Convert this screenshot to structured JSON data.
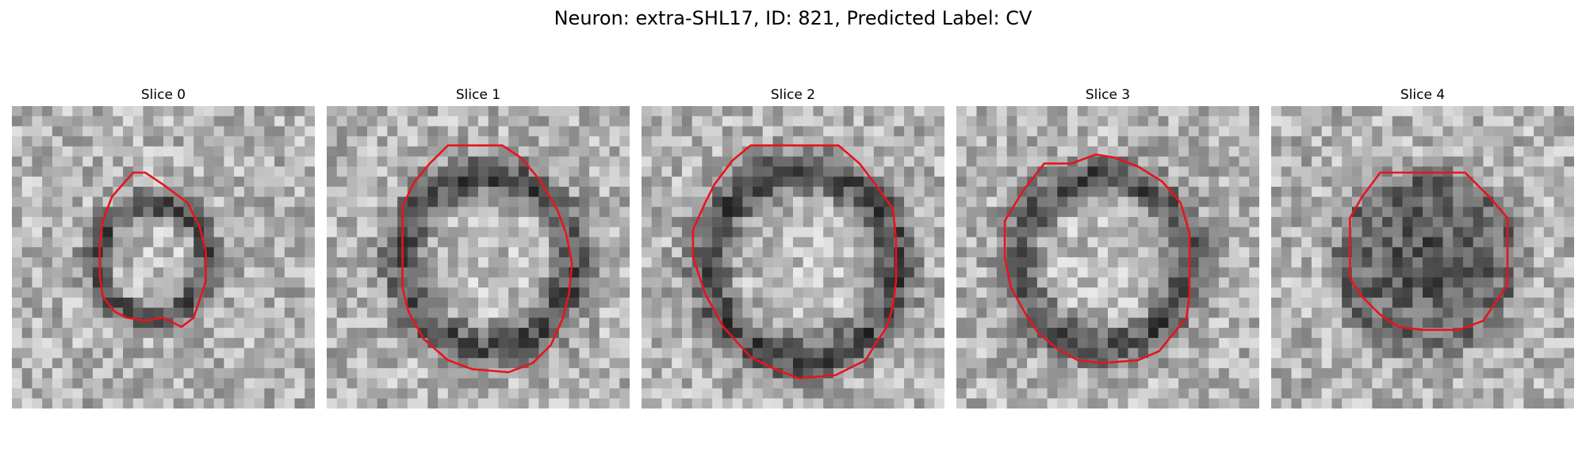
{
  "figure": {
    "title": "Neuron: extra-SHL17, ID: 821, Predicted Label: CV"
  },
  "panels": [
    {
      "title": "Slice 0",
      "ring": "dark-ring",
      "outline": [
        [
          0.4,
          0.22
        ],
        [
          0.44,
          0.22
        ],
        [
          0.5,
          0.26
        ],
        [
          0.58,
          0.32
        ],
        [
          0.62,
          0.4
        ],
        [
          0.64,
          0.48
        ],
        [
          0.64,
          0.58
        ],
        [
          0.62,
          0.64
        ],
        [
          0.6,
          0.7
        ],
        [
          0.56,
          0.73
        ],
        [
          0.5,
          0.7
        ],
        [
          0.44,
          0.71
        ],
        [
          0.38,
          0.7
        ],
        [
          0.34,
          0.68
        ],
        [
          0.3,
          0.63
        ],
        [
          0.29,
          0.56
        ],
        [
          0.29,
          0.46
        ],
        [
          0.3,
          0.38
        ],
        [
          0.33,
          0.3
        ]
      ]
    },
    {
      "title": "Slice 1",
      "ring": "dark-ring",
      "outline": [
        [
          0.4,
          0.13
        ],
        [
          0.58,
          0.13
        ],
        [
          0.64,
          0.17
        ],
        [
          0.7,
          0.24
        ],
        [
          0.76,
          0.34
        ],
        [
          0.79,
          0.42
        ],
        [
          0.81,
          0.52
        ],
        [
          0.8,
          0.62
        ],
        [
          0.78,
          0.7
        ],
        [
          0.74,
          0.79
        ],
        [
          0.68,
          0.85
        ],
        [
          0.6,
          0.88
        ],
        [
          0.48,
          0.87
        ],
        [
          0.4,
          0.84
        ],
        [
          0.32,
          0.77
        ],
        [
          0.27,
          0.68
        ],
        [
          0.25,
          0.6
        ],
        [
          0.25,
          0.5
        ],
        [
          0.25,
          0.33
        ],
        [
          0.29,
          0.25
        ],
        [
          0.34,
          0.19
        ]
      ]
    },
    {
      "title": "Slice 2",
      "ring": "dark-ring",
      "outline": [
        [
          0.36,
          0.13
        ],
        [
          0.65,
          0.13
        ],
        [
          0.72,
          0.19
        ],
        [
          0.78,
          0.27
        ],
        [
          0.83,
          0.34
        ],
        [
          0.84,
          0.44
        ],
        [
          0.84,
          0.58
        ],
        [
          0.83,
          0.66
        ],
        [
          0.81,
          0.73
        ],
        [
          0.77,
          0.79
        ],
        [
          0.74,
          0.84
        ],
        [
          0.64,
          0.89
        ],
        [
          0.52,
          0.9
        ],
        [
          0.44,
          0.87
        ],
        [
          0.36,
          0.83
        ],
        [
          0.27,
          0.73
        ],
        [
          0.21,
          0.62
        ],
        [
          0.17,
          0.5
        ],
        [
          0.17,
          0.41
        ],
        [
          0.21,
          0.32
        ],
        [
          0.24,
          0.26
        ],
        [
          0.3,
          0.18
        ]
      ]
    },
    {
      "title": "Slice 3",
      "ring": "dark-ring",
      "outline": [
        [
          0.22,
          0.28
        ],
        [
          0.29,
          0.19
        ],
        [
          0.38,
          0.19
        ],
        [
          0.46,
          0.16
        ],
        [
          0.52,
          0.17
        ],
        [
          0.6,
          0.2
        ],
        [
          0.68,
          0.25
        ],
        [
          0.74,
          0.32
        ],
        [
          0.77,
          0.42
        ],
        [
          0.77,
          0.52
        ],
        [
          0.77,
          0.62
        ],
        [
          0.76,
          0.7
        ],
        [
          0.71,
          0.76
        ],
        [
          0.67,
          0.81
        ],
        [
          0.6,
          0.84
        ],
        [
          0.48,
          0.85
        ],
        [
          0.4,
          0.84
        ],
        [
          0.33,
          0.8
        ],
        [
          0.27,
          0.75
        ],
        [
          0.23,
          0.69
        ],
        [
          0.18,
          0.6
        ],
        [
          0.16,
          0.5
        ],
        [
          0.16,
          0.38
        ]
      ]
    },
    {
      "title": "Slice 4",
      "ring": "dark-core",
      "outline": [
        [
          0.36,
          0.22
        ],
        [
          0.64,
          0.22
        ],
        [
          0.72,
          0.3
        ],
        [
          0.78,
          0.37
        ],
        [
          0.78,
          0.5
        ],
        [
          0.78,
          0.59
        ],
        [
          0.74,
          0.65
        ],
        [
          0.7,
          0.71
        ],
        [
          0.62,
          0.74
        ],
        [
          0.5,
          0.74
        ],
        [
          0.42,
          0.73
        ],
        [
          0.36,
          0.69
        ],
        [
          0.3,
          0.63
        ],
        [
          0.26,
          0.57
        ],
        [
          0.26,
          0.45
        ],
        [
          0.26,
          0.37
        ],
        [
          0.3,
          0.3
        ]
      ]
    }
  ],
  "colors": {
    "outline": "#e8141c"
  }
}
